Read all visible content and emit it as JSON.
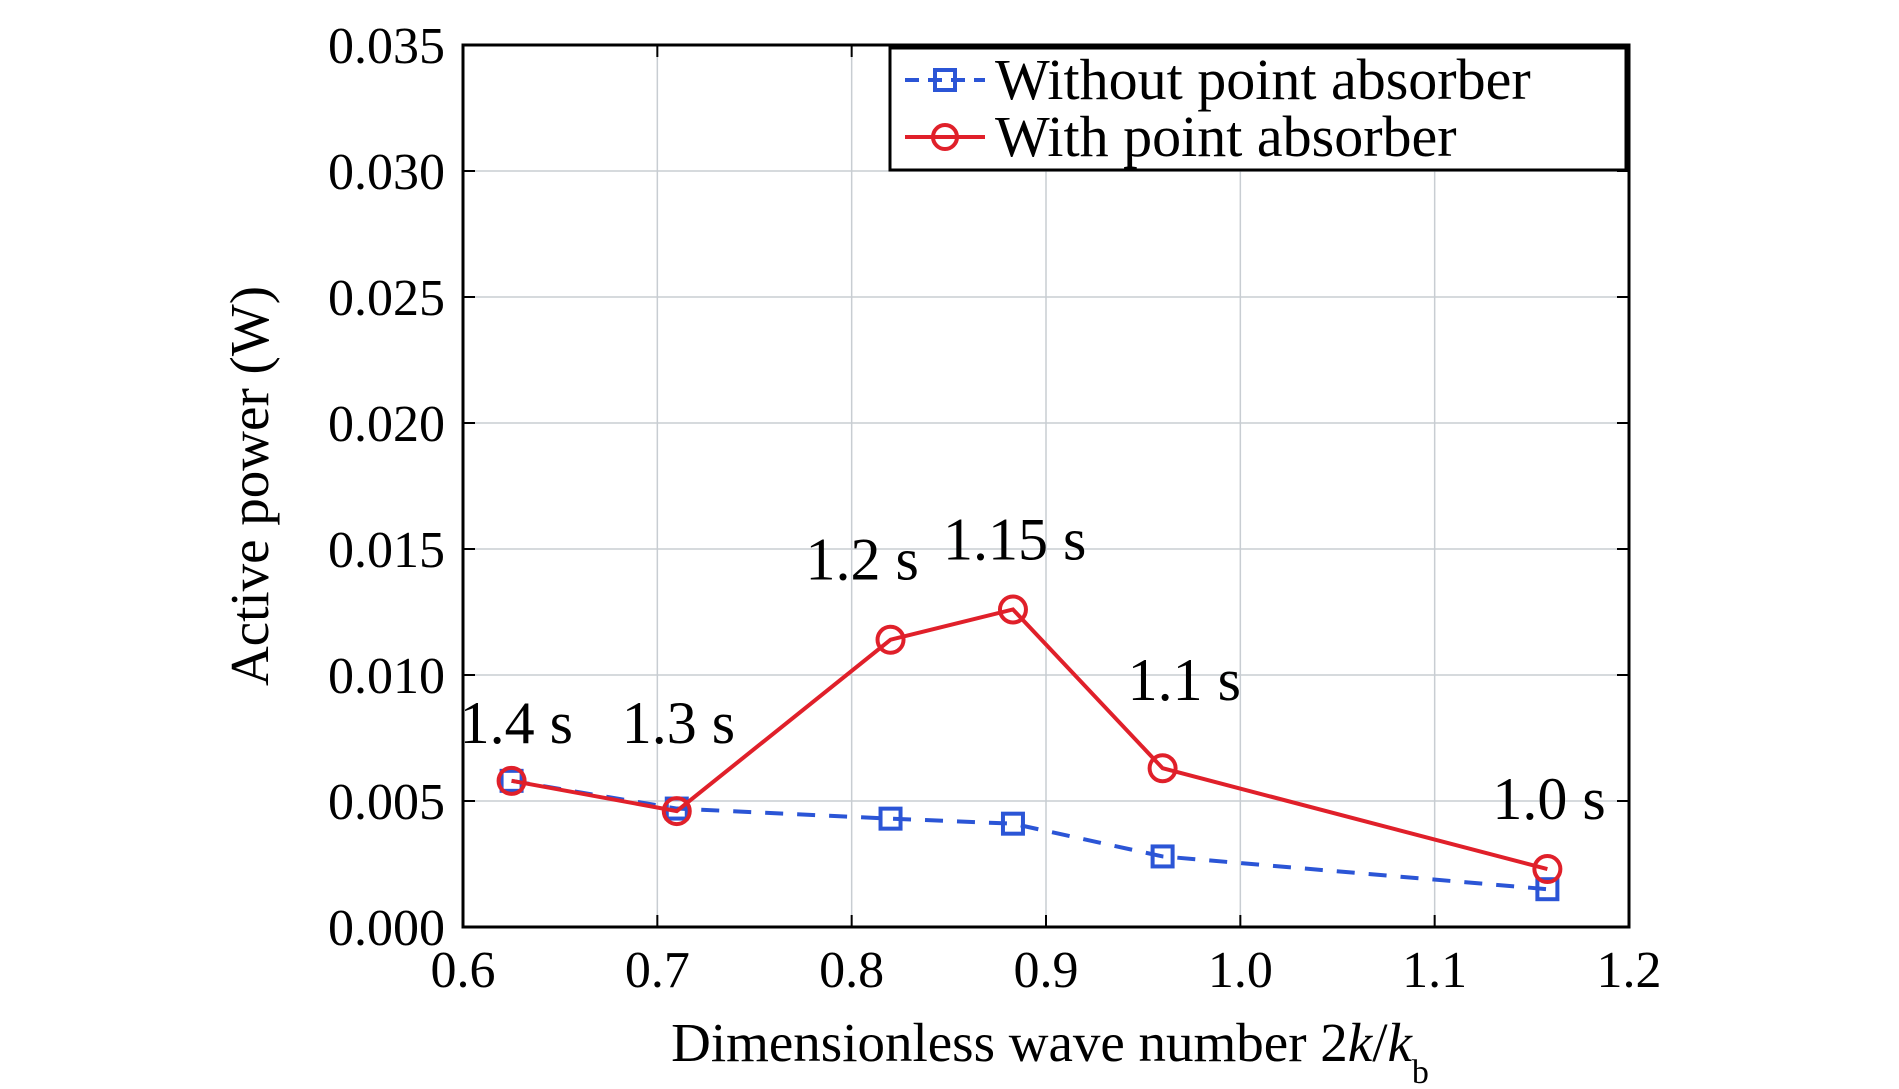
{
  "chart_data": {
    "type": "line",
    "xlabel_main": "Dimensionless wave number 2",
    "xlabel_k": "k",
    "xlabel_slash": "/",
    "xlabel_kb": "k",
    "xlabel_sub": "b",
    "ylabel": "Active power (W)",
    "xlim": [
      0.6,
      1.2
    ],
    "ylim": [
      0.0,
      0.035
    ],
    "x_ticks": [
      "0.6",
      "0.7",
      "0.8",
      "0.9",
      "1.0",
      "1.1",
      "1.2"
    ],
    "y_ticks": [
      "0.000",
      "0.005",
      "0.010",
      "0.015",
      "0.020",
      "0.025",
      "0.030",
      "0.035"
    ],
    "grid": true,
    "legend_position": "top-right",
    "series": [
      {
        "name": "Without point absorber",
        "color": "#2b55d6",
        "style": "dashed",
        "marker": "square",
        "x": [
          0.625,
          0.71,
          0.82,
          0.883,
          0.96,
          1.158
        ],
        "y": [
          0.0058,
          0.0047,
          0.0043,
          0.0041,
          0.0028,
          0.0015
        ]
      },
      {
        "name": "With point absorber",
        "color": "#e0202a",
        "style": "solid",
        "marker": "circle",
        "x": [
          0.625,
          0.71,
          0.82,
          0.883,
          0.96,
          1.158
        ],
        "y": [
          0.0058,
          0.0046,
          0.0114,
          0.0126,
          0.0063,
          0.0023
        ]
      }
    ],
    "annotations": [
      {
        "text": "1.4 s",
        "x": 0.625,
        "y": 0.0058
      },
      {
        "text": "1.3 s",
        "x": 0.71,
        "y": 0.0046
      },
      {
        "text": "1.2 s",
        "x": 0.82,
        "y": 0.0114
      },
      {
        "text": "1.15 s",
        "x": 0.883,
        "y": 0.0126
      },
      {
        "text": "1.1 s",
        "x": 0.96,
        "y": 0.0063
      },
      {
        "text": "1.0 s",
        "x": 1.158,
        "y": 0.0023
      }
    ]
  }
}
